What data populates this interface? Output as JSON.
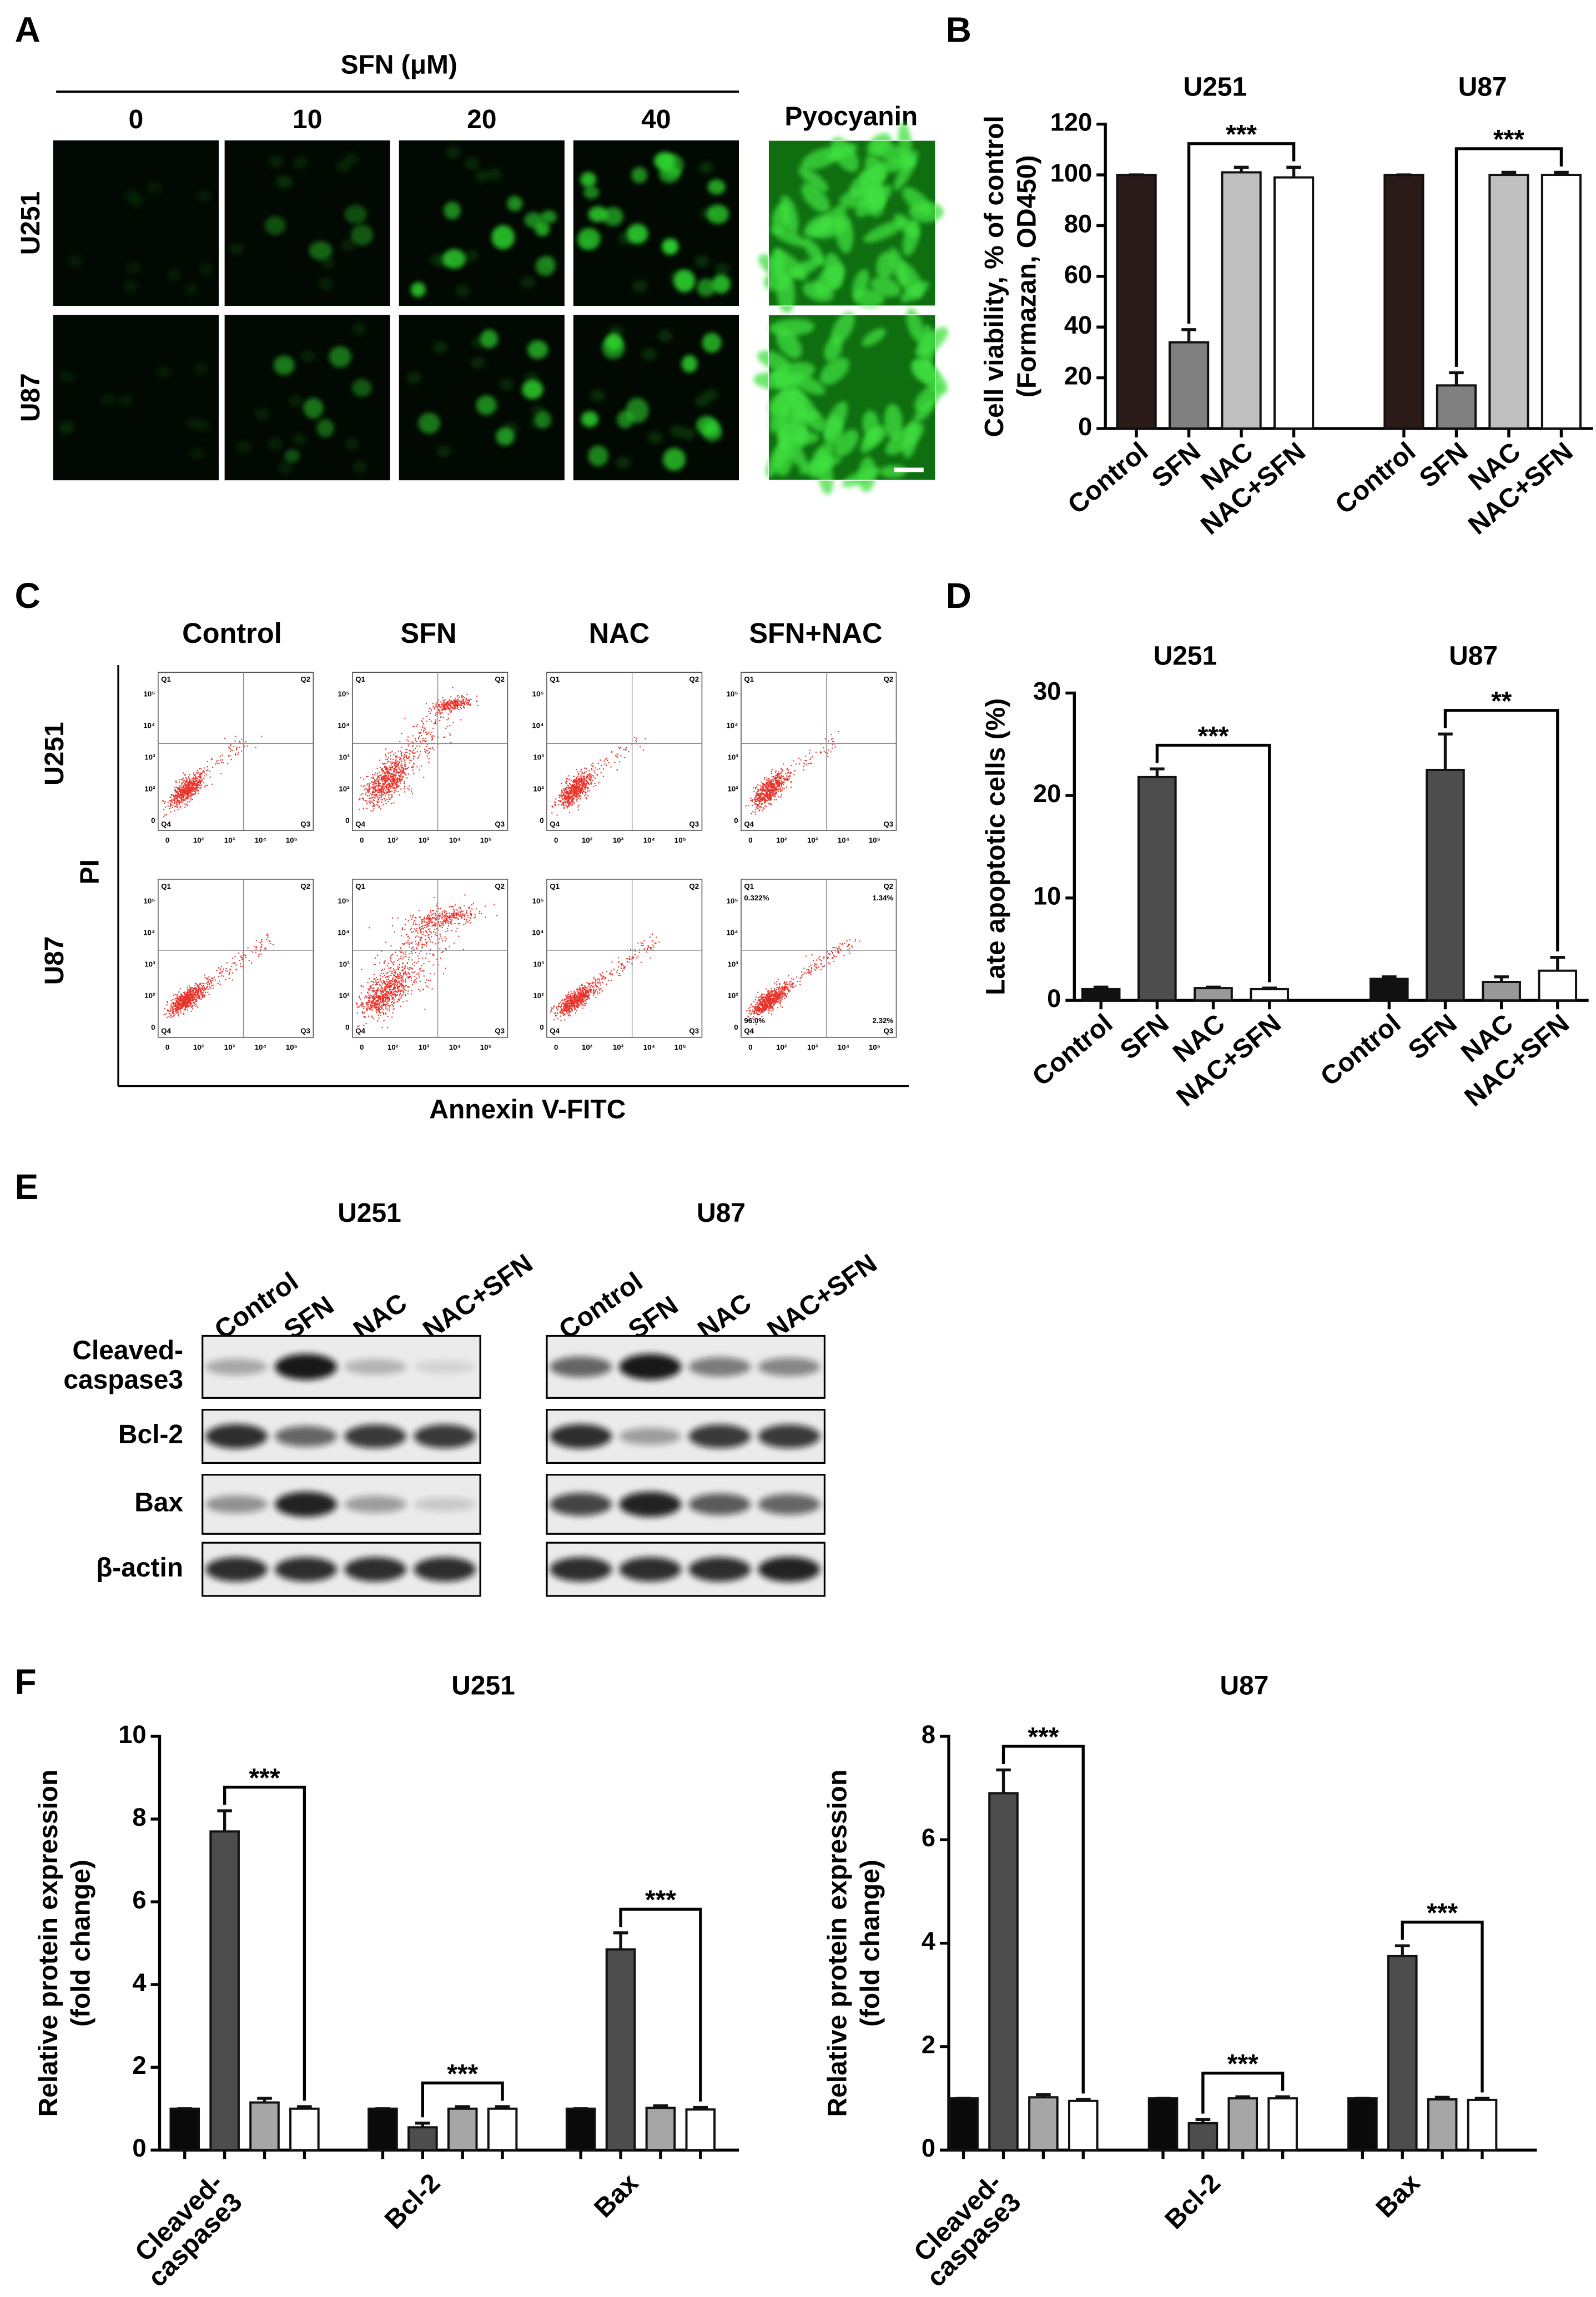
{
  "panel_a": {
    "label": "A",
    "treatment": "SFN (μM)",
    "columns": [
      "0",
      "10",
      "20",
      "40"
    ],
    "control_column": "Pyocyanin",
    "rows": [
      "U251",
      "U87"
    ]
  },
  "panel_c": {
    "label": "C",
    "columns": [
      "Control",
      "SFN",
      "NAC",
      "SFN+NAC"
    ],
    "rows": [
      "U251",
      "U87"
    ],
    "yaxis": "PI",
    "xaxis": "Annexin V-FITC",
    "quadrants": [
      "Q1",
      "Q2",
      "Q3",
      "Q4"
    ],
    "ticks": [
      "0",
      "10²",
      "10³",
      "10⁴",
      "10⁵"
    ],
    "percentages": {
      "Q1": "0.322%",
      "Q2": "1.34%",
      "Q3": "2.32%",
      "Q4": "96.0%"
    }
  },
  "panel_e": {
    "label": "E",
    "groups": [
      "U251",
      "U87"
    ],
    "lanes": [
      "Control",
      "SFN",
      "NAC",
      "NAC+SFN"
    ],
    "rows": [
      [
        "Cleaved-",
        "caspase3"
      ],
      [
        "Bcl-2"
      ],
      [
        "Bax"
      ],
      [
        "β-actin"
      ]
    ]
  },
  "chart_data": [
    {
      "type": "bar",
      "panel": "B",
      "ylabel": [
        "Cell viability, % of control",
        "(Formazan, OD450)"
      ],
      "ylim": [
        0,
        120
      ],
      "yticks": [
        0,
        20,
        40,
        60,
        80,
        100,
        120
      ],
      "bar_labels": [
        "Control",
        "SFN",
        "NAC",
        "NAC+SFN"
      ],
      "colors": [
        "#2a1a18",
        "#808080",
        "#c0c0c0",
        "#ffffff"
      ],
      "groups": [
        {
          "name": [
            "U251"
          ],
          "values": [
            100,
            34,
            101,
            99
          ],
          "errors": [
            0,
            5,
            2,
            4
          ],
          "significance": "***"
        },
        {
          "name": [
            "U87"
          ],
          "values": [
            100,
            17,
            100,
            100
          ],
          "errors": [
            0,
            5,
            1,
            1
          ],
          "significance": "***"
        }
      ]
    },
    {
      "type": "bar",
      "panel": "D",
      "ylabel": [
        "Late apoptotic cells (%)"
      ],
      "ylim": [
        0,
        30
      ],
      "yticks": [
        0,
        10,
        20,
        30
      ],
      "bar_labels": [
        "Control",
        "SFN",
        "NAC",
        "NAC+SFN"
      ],
      "colors": [
        "#111111",
        "#4d4d4d",
        "#999999",
        "#ffffff"
      ],
      "groups": [
        {
          "name": [
            "U251"
          ],
          "values": [
            1.1,
            21.8,
            1.2,
            1.1
          ],
          "errors": [
            0.2,
            0.8,
            0.1,
            0.1
          ],
          "significance": "***"
        },
        {
          "name": [
            "U87"
          ],
          "values": [
            2.1,
            22.5,
            1.8,
            2.9
          ],
          "errors": [
            0.2,
            3.5,
            0.5,
            1.3
          ],
          "significance": "**"
        }
      ]
    },
    {
      "type": "bar",
      "panel": "F",
      "title": "U251",
      "ylabel": [
        "Relative protein expression",
        "(fold change)"
      ],
      "ylim": [
        0,
        10
      ],
      "yticks": [
        0,
        2,
        4,
        6,
        8,
        10
      ],
      "colors": [
        "#0a0a0a",
        "#4d4d4d",
        "#a6a6a6",
        "#ffffff"
      ],
      "groups": [
        {
          "name": [
            "Cleaved-",
            "caspase3"
          ],
          "values": [
            1.0,
            7.7,
            1.15,
            1.0
          ],
          "errors": [
            0,
            0.5,
            0.1,
            0.05
          ],
          "significance": "***"
        },
        {
          "name": [
            "Bcl-2"
          ],
          "values": [
            1.0,
            0.55,
            1.0,
            1.0
          ],
          "errors": [
            0,
            0.1,
            0.05,
            0.05
          ],
          "significance": "***"
        },
        {
          "name": [
            "Bax"
          ],
          "values": [
            1.0,
            4.85,
            1.02,
            0.98
          ],
          "errors": [
            0,
            0.4,
            0.05,
            0.05
          ],
          "significance": "***"
        }
      ]
    },
    {
      "type": "bar",
      "title": "U87",
      "ylabel": [
        "Relative protein expression",
        "(fold change)"
      ],
      "ylim": [
        0,
        8
      ],
      "yticks": [
        0,
        2,
        4,
        6,
        8
      ],
      "colors": [
        "#0a0a0a",
        "#4d4d4d",
        "#a6a6a6",
        "#ffffff"
      ],
      "groups": [
        {
          "name": [
            "Cleaved-",
            "caspase3"
          ],
          "values": [
            1.0,
            6.9,
            1.02,
            0.95
          ],
          "errors": [
            0,
            0.45,
            0.05,
            0.03
          ],
          "significance": "***"
        },
        {
          "name": [
            "Bcl-2"
          ],
          "values": [
            1.0,
            0.52,
            1.0,
            1.0
          ],
          "errors": [
            0,
            0.07,
            0.03,
            0.03
          ],
          "significance": "***"
        },
        {
          "name": [
            "Bax"
          ],
          "values": [
            1.0,
            3.75,
            0.98,
            0.97
          ],
          "errors": [
            0,
            0.2,
            0.04,
            0.03
          ],
          "significance": "***"
        }
      ]
    }
  ]
}
